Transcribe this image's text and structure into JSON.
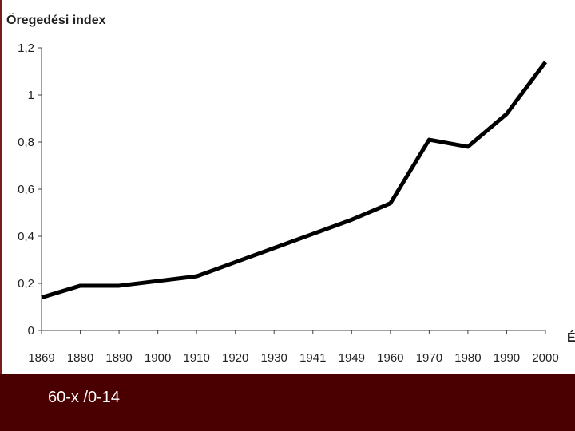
{
  "chart_data": {
    "type": "line",
    "title": "Öregedési index",
    "xlabel": "É",
    "ylabel": "",
    "categories": [
      "1869",
      "1880",
      "1890",
      "1900",
      "1910",
      "1920",
      "1930",
      "1941",
      "1949",
      "1960",
      "1970",
      "1980",
      "1990",
      "2000"
    ],
    "y_ticks": [
      "0",
      "0,2",
      "0,4",
      "0,6",
      "0,8",
      "1",
      "1,2"
    ],
    "ylim": [
      0,
      1.2
    ],
    "grid": false,
    "series": [
      {
        "values": [
          0.14,
          0.19,
          0.19,
          0.21,
          0.23,
          0.29,
          0.35,
          0.41,
          0.47,
          0.54,
          0.81,
          0.78,
          0.92,
          1.14
        ]
      }
    ],
    "line_color": "#000000"
  },
  "footer": {
    "caption": "60-x /0-14",
    "background": "#4a0000"
  }
}
